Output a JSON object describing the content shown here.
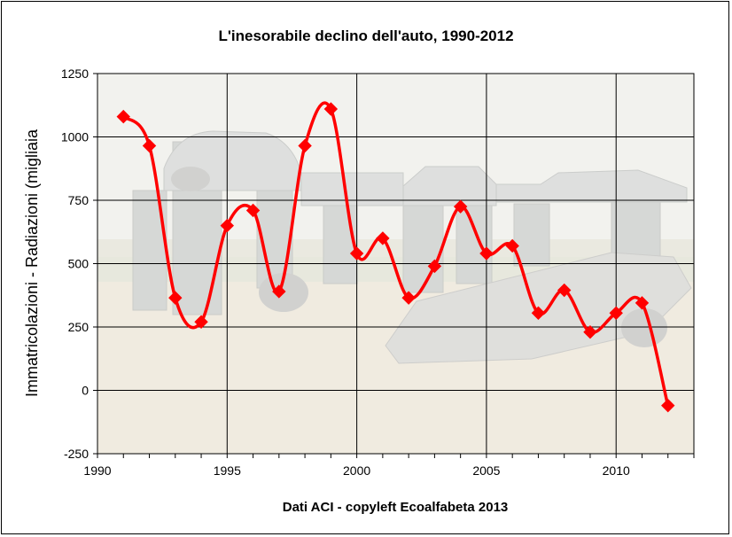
{
  "chart_data": {
    "type": "line",
    "title": "L'inesorabile declino dell'auto, 1990-2012",
    "xlabel": "Dati ACI - copyleft Ecoalfabeta 2013",
    "ylabel": "Immatricolazioni - Radiazioni (migliaia",
    "x": [
      1991,
      1992,
      1993,
      1994,
      1995,
      1996,
      1997,
      1998,
      1999,
      2000,
      2001,
      2002,
      2003,
      2004,
      2005,
      2006,
      2007,
      2008,
      2009,
      2010,
      2011,
      2012
    ],
    "series": [
      {
        "values": [
          1080,
          965,
          365,
          270,
          650,
          710,
          390,
          965,
          1110,
          540,
          600,
          365,
          490,
          725,
          540,
          570,
          305,
          395,
          230,
          305,
          345,
          -60
        ],
        "color": "#ff0000",
        "marker": "diamond",
        "smooth": true
      }
    ],
    "xlim": [
      1990,
      2013
    ],
    "ylim": [
      -250,
      1250
    ],
    "xticks": [
      1990,
      1995,
      2000,
      2005,
      2010
    ],
    "yticks": [
      -250,
      0,
      250,
      500,
      750,
      1000,
      1250
    ],
    "grid": true,
    "legend": "none",
    "background": "faded photograph of cars buried nose-down in a field (Carhenge)"
  }
}
